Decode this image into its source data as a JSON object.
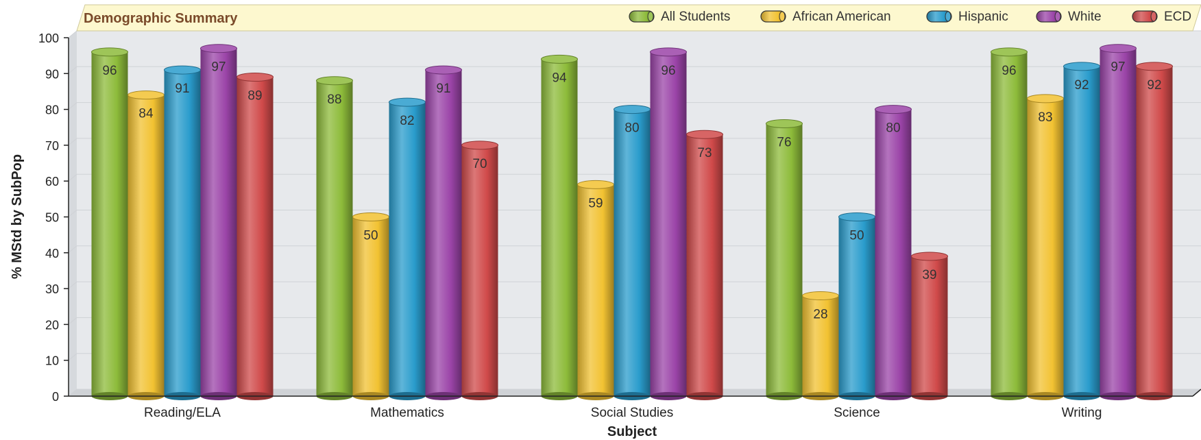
{
  "chart_data": {
    "type": "bar",
    "title": "Demographic Summary",
    "xlabel": "Subject",
    "ylabel": "% MStd by SubPop",
    "ylim": [
      0,
      100
    ],
    "yticks": [
      0,
      10,
      20,
      30,
      40,
      50,
      60,
      70,
      80,
      90,
      100
    ],
    "grid": true,
    "legend_position": "top-right",
    "categories": [
      "Reading/ELA",
      "Mathematics",
      "Social Studies",
      "Science",
      "Writing"
    ],
    "series": [
      {
        "name": "All Students",
        "color": "#8dbb3a",
        "values": [
          96,
          88,
          94,
          76,
          96
        ]
      },
      {
        "name": "African American",
        "color": "#f2c232",
        "values": [
          84,
          50,
          59,
          28,
          83
        ]
      },
      {
        "name": "Hispanic",
        "color": "#2a9ccc",
        "values": [
          91,
          82,
          80,
          50,
          92
        ]
      },
      {
        "name": "White",
        "color": "#9b44a8",
        "values": [
          97,
          91,
          96,
          80,
          97
        ]
      },
      {
        "name": "ECD",
        "color": "#d04a4a",
        "values": [
          89,
          70,
          73,
          39,
          92
        ]
      }
    ]
  }
}
